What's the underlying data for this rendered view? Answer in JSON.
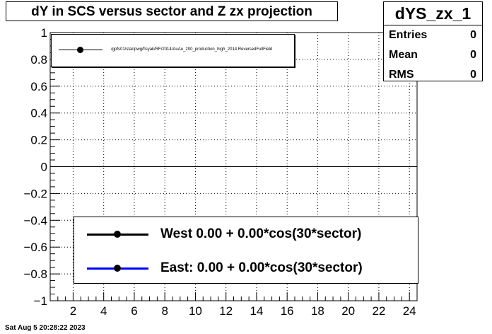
{
  "title": "dY in SCS versus sector and Z zx projection",
  "stats": {
    "name": "dYS_zx_1",
    "rows": [
      {
        "key": "Entries",
        "value": "0"
      },
      {
        "key": "Mean",
        "value": "0"
      },
      {
        "key": "RMS",
        "value": "0"
      }
    ]
  },
  "top_legend_label": "/gpfs01/star/pwg/fisyak/RF/2014/AuAu_200_production_high_2014 ReversedFullField",
  "fit_legend": [
    {
      "label": "West  0.00 +  0.00*cos(30*sector)",
      "color": "#000000"
    },
    {
      "label": "East:  0.00 +  0.00*cos(30*sector)",
      "color": "#0000ff"
    }
  ],
  "footer_text": "Sat Aug  5 20:28:22 2023",
  "chart_data": {
    "type": "line",
    "title": "dY in SCS versus sector and Z zx projection",
    "xlabel": "",
    "ylabel": "",
    "xlim": [
      0.5,
      24.5
    ],
    "ylim": [
      -1,
      1
    ],
    "x_ticks": [
      "2",
      "4",
      "6",
      "8",
      "10",
      "12",
      "14",
      "16",
      "18",
      "20",
      "22",
      "24"
    ],
    "y_ticks": [
      "1",
      "0.8",
      "0.6",
      "0.4",
      "0.2",
      "0",
      "−0.2",
      "−0.4",
      "−0.6",
      "−0.8",
      "−1"
    ],
    "grid": true,
    "series": [
      {
        "name": "West  0.00 +  0.00*cos(30*sector)",
        "color": "#000000",
        "x": [
          0.5,
          24.5
        ],
        "y": [
          0,
          0
        ]
      },
      {
        "name": "East:  0.00 +  0.00*cos(30*sector)",
        "color": "#0000ff",
        "x": [
          0.5,
          24.5
        ],
        "y": [
          0,
          0
        ]
      }
    ]
  }
}
